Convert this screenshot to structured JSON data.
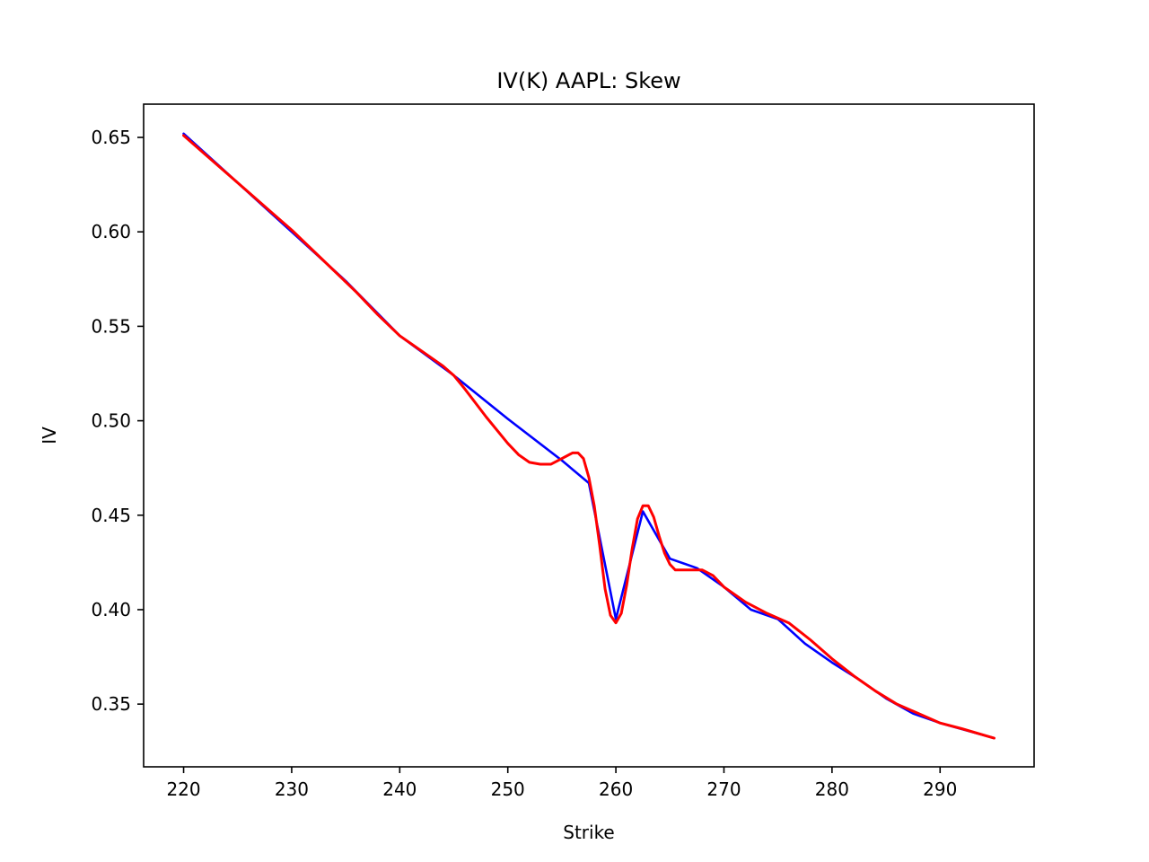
{
  "chart_data": {
    "type": "line",
    "title": "IV(K) AAPL: Skew",
    "xlabel": "Strike",
    "ylabel": "IV",
    "xlim": [
      216.3,
      298.7
    ],
    "ylim": [
      0.3168,
      0.6676
    ],
    "xticks": [
      220,
      230,
      240,
      250,
      260,
      270,
      280,
      290
    ],
    "yticks": [
      0.35,
      0.4,
      0.45,
      0.5,
      0.55,
      0.6,
      0.65
    ],
    "xtick_labels": [
      "220",
      "230",
      "240",
      "250",
      "260",
      "270",
      "280",
      "290"
    ],
    "ytick_labels": [
      "0.35",
      "0.40",
      "0.45",
      "0.50",
      "0.55",
      "0.60",
      "0.65"
    ],
    "grid": false,
    "series": [
      {
        "color": "#0000ff",
        "x": [
          220,
          225,
          230,
          235,
          240,
          245,
          250,
          255,
          257.5,
          260,
          262.5,
          265,
          267.5,
          270,
          272.5,
          275,
          277.5,
          280,
          282.5,
          285,
          287.5,
          290,
          292.5,
          295
        ],
        "y": [
          0.652,
          0.626,
          0.6,
          0.574,
          0.545,
          0.524,
          0.501,
          0.479,
          0.467,
          0.395,
          0.452,
          0.427,
          0.422,
          0.412,
          0.4,
          0.395,
          0.382,
          0.372,
          0.363,
          0.353,
          0.345,
          0.34,
          0.336,
          0.332
        ]
      },
      {
        "color": "#ff0000",
        "x": [
          220,
          222,
          224,
          226,
          228,
          230,
          232,
          234,
          236,
          238,
          240,
          242,
          244,
          245,
          246,
          248,
          250,
          251,
          252,
          253,
          254,
          255,
          256,
          256.5,
          257,
          257.5,
          258,
          258.5,
          259,
          259.5,
          260,
          260.5,
          261,
          261.5,
          262,
          262.5,
          263,
          263.5,
          264,
          264.5,
          265,
          265.5,
          266,
          267,
          268,
          269,
          270,
          272,
          274,
          276,
          278,
          280,
          282,
          284,
          286,
          288,
          290,
          292,
          295
        ],
        "y": [
          0.651,
          0.641,
          0.631,
          0.621,
          0.611,
          0.601,
          0.59,
          0.579,
          0.568,
          0.556,
          0.545,
          0.537,
          0.529,
          0.524,
          0.517,
          0.502,
          0.488,
          0.482,
          0.478,
          0.477,
          0.477,
          0.48,
          0.483,
          0.483,
          0.48,
          0.47,
          0.455,
          0.434,
          0.411,
          0.397,
          0.393,
          0.398,
          0.413,
          0.432,
          0.448,
          0.455,
          0.455,
          0.449,
          0.439,
          0.43,
          0.424,
          0.421,
          0.421,
          0.421,
          0.421,
          0.418,
          0.412,
          0.404,
          0.398,
          0.393,
          0.384,
          0.374,
          0.365,
          0.357,
          0.35,
          0.345,
          0.34,
          0.337,
          0.332
        ]
      }
    ]
  }
}
